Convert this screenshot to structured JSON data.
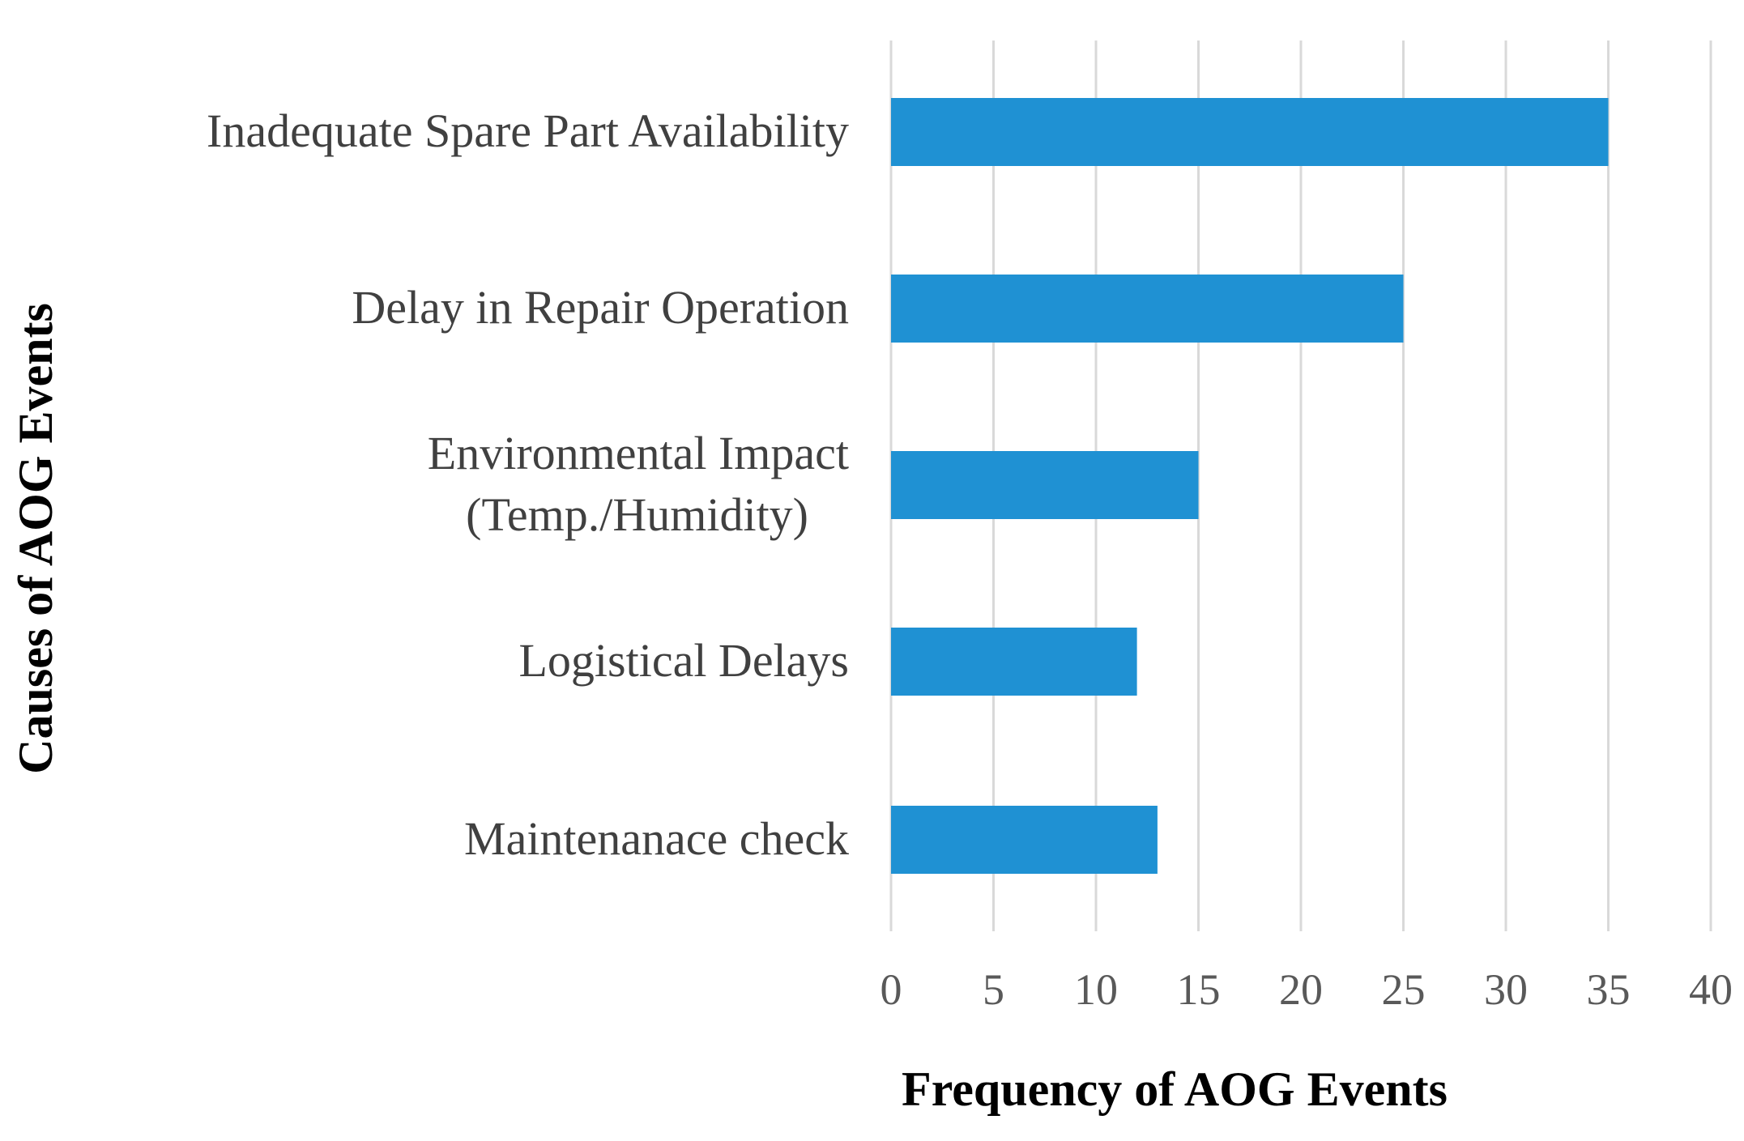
{
  "chart_data": {
    "type": "bar",
    "orientation": "horizontal",
    "categories": [
      "Inadequate Spare Part Availability",
      "Delay in Repair Operation",
      "Environmental Impact (Temp./Humidity)",
      "Logistical Delays",
      "Maintenanace check"
    ],
    "category_lines": [
      [
        "Inadequate Spare Part Availability"
      ],
      [
        "Delay in Repair Operation"
      ],
      [
        "Environmental Impact",
        "(Temp./Humidity)"
      ],
      [
        "Logistical Delays"
      ],
      [
        "Maintenanace check"
      ]
    ],
    "values": [
      35,
      25,
      15,
      12,
      13
    ],
    "xlim": [
      0,
      40
    ],
    "xticks": [
      "0",
      "5",
      "10",
      "15",
      "20",
      "25",
      "30",
      "35",
      "40"
    ],
    "xlabel": "Frequency of AOG Events",
    "ylabel": "Causes of AOG Events",
    "title": "",
    "grid": "vertical",
    "legend": "none",
    "bar_color": "#1f91d3"
  }
}
